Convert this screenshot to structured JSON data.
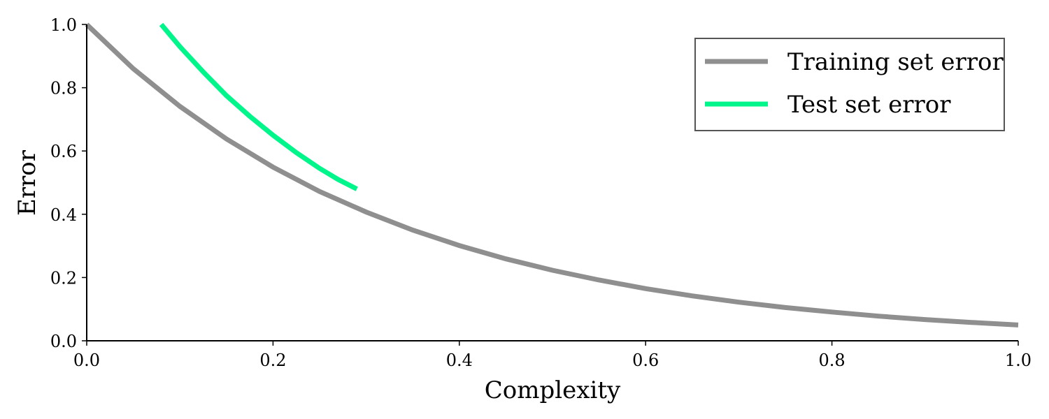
{
  "chart_data": {
    "type": "line",
    "title": "",
    "xlabel": "Complexity",
    "ylabel": "Error",
    "xlim": [
      0.0,
      1.0
    ],
    "ylim": [
      0.0,
      1.0
    ],
    "xticks": [
      "0.0",
      "0.2",
      "0.4",
      "0.6",
      "0.8",
      "1.0"
    ],
    "yticks": [
      "0.0",
      "0.2",
      "0.4",
      "0.6",
      "0.8",
      "1.0"
    ],
    "grid": false,
    "legend_position": "top-right",
    "series": [
      {
        "name": "Training set error",
        "color": "#8f8f8f",
        "x": [
          0.0,
          0.05,
          0.1,
          0.15,
          0.2,
          0.25,
          0.3,
          0.35,
          0.4,
          0.45,
          0.5,
          0.55,
          0.6,
          0.65,
          0.7,
          0.75,
          0.8,
          0.85,
          0.9,
          0.95,
          1.0
        ],
        "y": [
          1.0,
          0.86,
          0.741,
          0.638,
          0.549,
          0.472,
          0.407,
          0.35,
          0.301,
          0.259,
          0.223,
          0.192,
          0.165,
          0.142,
          0.122,
          0.105,
          0.091,
          0.078,
          0.067,
          0.058,
          0.05
        ]
      },
      {
        "name": "Test set error",
        "color": "#00f58a",
        "x": [
          0.08,
          0.1,
          0.125,
          0.15,
          0.175,
          0.2,
          0.225,
          0.25,
          0.27,
          0.29
        ],
        "y": [
          1.0,
          0.93,
          0.85,
          0.775,
          0.71,
          0.65,
          0.595,
          0.545,
          0.51,
          0.48
        ]
      }
    ]
  }
}
